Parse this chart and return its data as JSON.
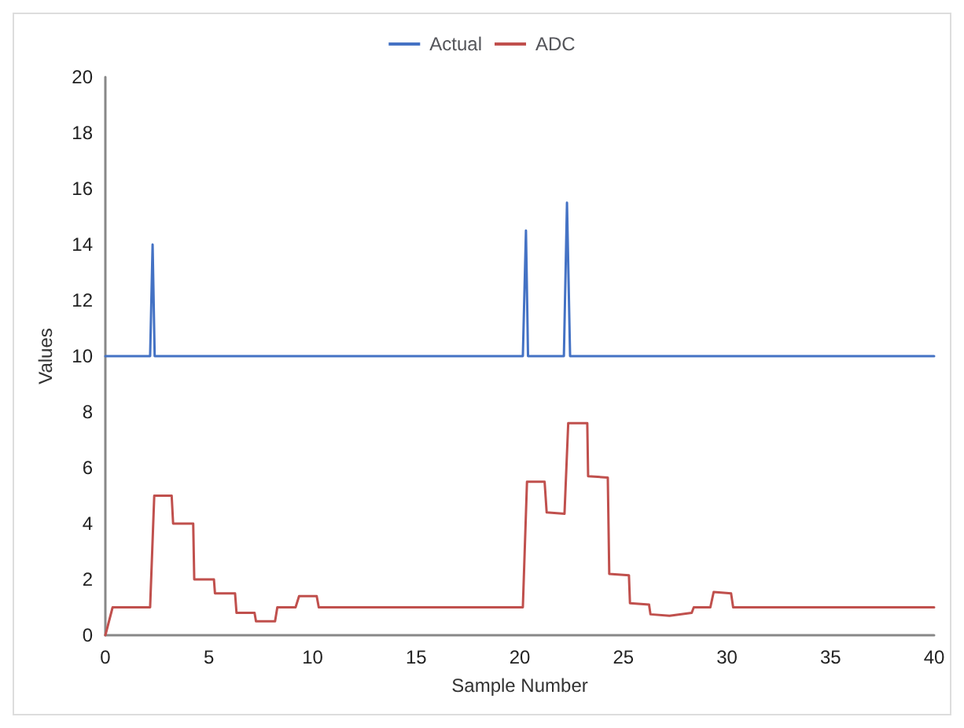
{
  "chart_data": {
    "type": "line",
    "xlabel": "Sample Number",
    "ylabel": "Values",
    "xlim": [
      0,
      40
    ],
    "xticks": [
      0,
      5,
      10,
      15,
      20,
      25,
      30,
      35,
      40
    ],
    "ylim": [
      0,
      20
    ],
    "yticks": [
      0,
      2,
      4,
      6,
      8,
      10,
      12,
      14,
      16,
      18,
      20
    ],
    "grid": false,
    "legend": "top",
    "marker": "none",
    "line_style": "solid",
    "series": [
      {
        "name": "Actual",
        "color": "#4472c4",
        "x": [
          0,
          2.16,
          2.28,
          2.38,
          20.15,
          20.3,
          20.4,
          22.13,
          22.28,
          22.43,
          40
        ],
        "values": [
          10,
          10,
          14,
          10,
          10,
          14.5,
          10,
          10,
          15.5,
          10,
          10
        ]
      },
      {
        "name": "ADC",
        "color": "#c0504d",
        "x": [
          0,
          0.35,
          2.16,
          2.36,
          3.2,
          3.27,
          4.24,
          4.29,
          5.24,
          5.29,
          6.26,
          6.33,
          7.2,
          7.27,
          8.19,
          8.3,
          9.18,
          9.35,
          10.2,
          10.3,
          20.15,
          20.35,
          21.2,
          21.3,
          22.16,
          22.34,
          23.26,
          23.3,
          24.25,
          24.32,
          25.27,
          25.32,
          26.24,
          26.31,
          27.23,
          28.3,
          28.4,
          29.2,
          29.36,
          30.2,
          30.3,
          40
        ],
        "values": [
          0,
          1,
          1,
          5,
          5,
          4,
          4,
          2,
          2,
          1.5,
          1.5,
          0.8,
          0.8,
          0.5,
          0.5,
          1,
          1,
          1.4,
          1.4,
          1,
          1,
          5.5,
          5.5,
          4.4,
          4.35,
          7.6,
          7.6,
          5.7,
          5.65,
          2.2,
          2.15,
          1.15,
          1.1,
          0.75,
          0.7,
          0.8,
          1,
          1,
          1.55,
          1.5,
          1,
          1
        ]
      }
    ]
  }
}
